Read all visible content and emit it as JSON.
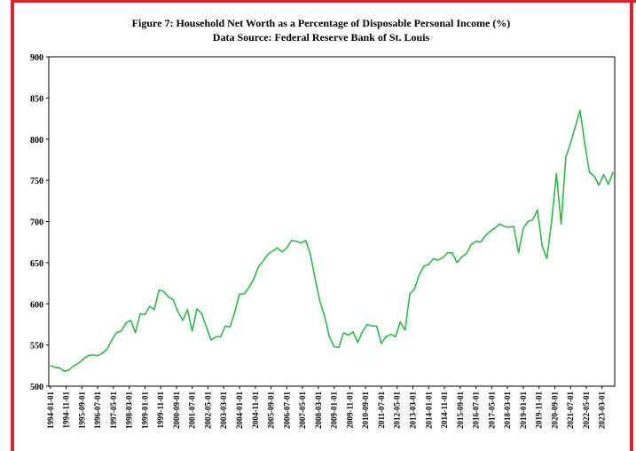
{
  "chart_data": {
    "type": "line",
    "title": "Figure 7: Household Net Worth as a Percentage of Disposable Personal Income (%)",
    "subtitle": "Data Source: Federal Reserve Bank of St. Louis",
    "x": [
      "1994-01-01",
      "1994-04-01",
      "1994-07-01",
      "1994-10-01",
      "1995-01-01",
      "1995-04-01",
      "1995-07-01",
      "1995-10-01",
      "1996-01-01",
      "1996-04-01",
      "1996-07-01",
      "1996-10-01",
      "1997-01-01",
      "1997-04-01",
      "1997-07-01",
      "1997-10-01",
      "1998-01-01",
      "1998-04-01",
      "1998-07-01",
      "1998-10-01",
      "1999-01-01",
      "1999-04-01",
      "1999-07-01",
      "1999-10-01",
      "2000-01-01",
      "2000-04-01",
      "2000-07-01",
      "2000-10-01",
      "2001-01-01",
      "2001-04-01",
      "2001-07-01",
      "2001-10-01",
      "2002-01-01",
      "2002-04-01",
      "2002-07-01",
      "2002-10-01",
      "2003-01-01",
      "2003-04-01",
      "2003-07-01",
      "2003-10-01",
      "2004-01-01",
      "2004-04-01",
      "2004-07-01",
      "2004-10-01",
      "2005-01-01",
      "2005-04-01",
      "2005-07-01",
      "2005-10-01",
      "2006-01-01",
      "2006-04-01",
      "2006-07-01",
      "2006-10-01",
      "2007-01-01",
      "2007-04-01",
      "2007-07-01",
      "2007-10-01",
      "2008-01-01",
      "2008-04-01",
      "2008-07-01",
      "2008-10-01",
      "2009-01-01",
      "2009-04-01",
      "2009-07-01",
      "2009-10-01",
      "2010-01-01",
      "2010-04-01",
      "2010-07-01",
      "2010-10-01",
      "2011-01-01",
      "2011-04-01",
      "2011-07-01",
      "2011-10-01",
      "2012-01-01",
      "2012-04-01",
      "2012-07-01",
      "2012-10-01",
      "2013-01-01",
      "2013-04-01",
      "2013-07-01",
      "2013-10-01",
      "2014-01-01",
      "2014-04-01",
      "2014-07-01",
      "2014-10-01",
      "2015-01-01",
      "2015-04-01",
      "2015-07-01",
      "2015-10-01",
      "2016-01-01",
      "2016-04-01",
      "2016-07-01",
      "2016-10-01",
      "2017-01-01",
      "2017-04-01",
      "2017-07-01",
      "2017-10-01",
      "2018-01-01",
      "2018-04-01",
      "2018-07-01",
      "2018-10-01",
      "2019-01-01",
      "2019-04-01",
      "2019-07-01",
      "2019-10-01",
      "2020-01-01",
      "2020-04-01",
      "2020-07-01",
      "2020-10-01",
      "2021-01-01",
      "2021-04-01",
      "2021-07-01",
      "2021-10-01",
      "2022-01-01",
      "2022-04-01",
      "2022-07-01",
      "2022-10-01",
      "2023-01-01",
      "2023-04-01",
      "2023-07-01",
      "2023-10-01"
    ],
    "series": [
      {
        "color": "#2eb84b",
        "values": [
          525,
          523,
          522,
          518,
          520,
          525,
          528,
          533,
          537,
          538,
          537,
          540,
          545,
          556,
          565,
          567,
          577,
          580,
          565,
          588,
          587,
          597,
          593,
          617,
          615,
          608,
          605,
          590,
          580,
          593,
          567,
          594,
          588,
          572,
          556,
          560,
          560,
          573,
          572,
          590,
          612,
          612,
          620,
          630,
          645,
          652,
          660,
          664,
          668,
          663,
          668,
          677,
          676,
          674,
          677,
          660,
          630,
          603,
          585,
          560,
          548,
          547,
          565,
          562,
          566,
          553,
          566,
          575,
          573,
          573,
          552,
          560,
          563,
          560,
          578,
          568,
          612,
          618,
          635,
          646,
          648,
          655,
          653,
          656,
          662,
          662,
          650,
          657,
          661,
          672,
          676,
          675,
          683,
          688,
          692,
          697,
          694,
          693,
          694,
          662,
          692,
          700,
          702,
          714,
          670,
          655,
          700,
          758,
          697,
          778,
          795,
          815,
          835,
          795,
          760,
          755,
          744,
          757,
          745,
          760
        ]
      }
    ],
    "xlim": [
      "1993-12-01",
      "2023-11-01"
    ],
    "xticks": [
      "1994-01-01",
      "1994-11-01",
      "1995-09-01",
      "1996-07-01",
      "1997-05-01",
      "1998-03-01",
      "1999-01-01",
      "1999-11-01",
      "2000-09-01",
      "2001-07-01",
      "2002-05-01",
      "2003-03-01",
      "2004-01-01",
      "2004-11-01",
      "2005-09-01",
      "2006-07-01",
      "2007-05-01",
      "2008-03-01",
      "2009-01-01",
      "2009-11-01",
      "2010-09-01",
      "2011-07-01",
      "2012-05-01",
      "2013-03-01",
      "2014-01-01",
      "2014-11-01",
      "2015-09-01",
      "2016-07-01",
      "2017-05-01",
      "2018-03-01",
      "2019-01-01",
      "2019-11-01",
      "2020-09-01",
      "2021-07-01",
      "2022-05-01",
      "2023-03-01"
    ],
    "ylim": [
      500,
      900
    ],
    "yticks": [
      500,
      550,
      600,
      650,
      700,
      750,
      800,
      850,
      900
    ]
  }
}
